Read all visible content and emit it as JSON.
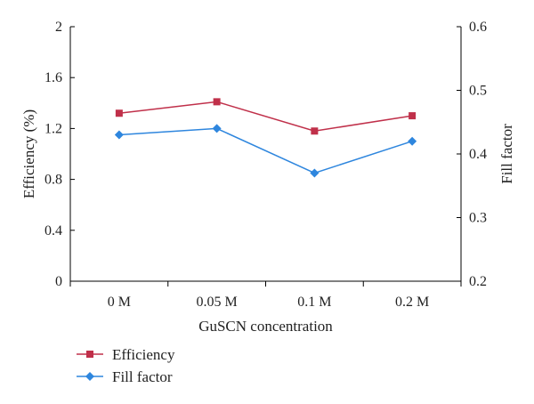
{
  "chart_data": {
    "type": "line",
    "categories": [
      "0 M",
      "0.05 M",
      "0.1 M",
      "0.2 M"
    ],
    "xlabel": "GuSCN concentration",
    "ylabel": "Efficiency (%)",
    "y2label": "Fill factor",
    "ylim": [
      0,
      2
    ],
    "yticks": [
      "0",
      "0.4",
      "0.8",
      "1.2",
      "1.6",
      "2"
    ],
    "y2lim": [
      0.2,
      0.6
    ],
    "y2ticks": [
      "0.2",
      "0.3",
      "0.4",
      "0.5",
      "0.6"
    ],
    "grid": false,
    "legend_position": "bottom-left",
    "series": [
      {
        "name": "Efficiency",
        "axis": "left",
        "values": [
          1.32,
          1.41,
          1.18,
          1.3
        ],
        "color": "#c0304a",
        "marker": "square"
      },
      {
        "name": "Fill factor",
        "axis": "right",
        "values": [
          0.43,
          0.44,
          0.37,
          0.42
        ],
        "color": "#2e86de",
        "marker": "diamond"
      }
    ]
  }
}
